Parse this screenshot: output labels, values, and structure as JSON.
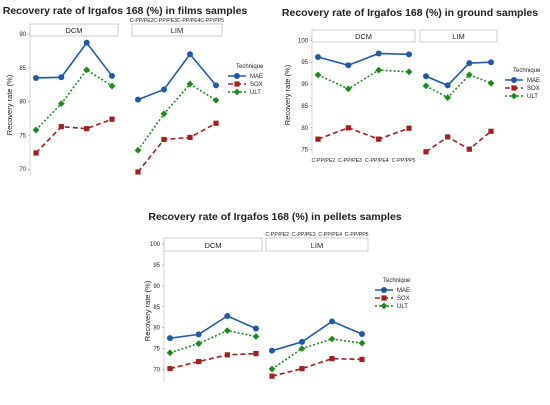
{
  "chart_data": [
    {
      "type": "line",
      "title": "Recovery rate of Irgafos 168 (%) in films samples",
      "ylabel": "Recovery rate (%)",
      "ylim": [
        69,
        90
      ],
      "yticks": [
        70,
        75,
        80,
        85,
        90
      ],
      "panels": [
        "DCM",
        "LIM"
      ],
      "categories": [
        "C-PP/PE2",
        "C-PP/PE3",
        "C-PP/PE4",
        "C-PP/PP5"
      ],
      "legend_title": "Technique",
      "legend_position": "right",
      "series": [
        {
          "name": "MAE",
          "color": "#1f5aa6",
          "marker": "circle",
          "dash": "solid",
          "values": {
            "DCM": [
              83.5,
              83.6,
              88.7,
              83.8
            ],
            "LIM": [
              80.3,
              81.8,
              87.0,
              82.4
            ]
          }
        },
        {
          "name": "SOX",
          "color": "#a11f1f",
          "marker": "square",
          "dash": "dashed",
          "values": {
            "DCM": [
              72.4,
              76.3,
              76.0,
              77.4
            ],
            "LIM": [
              69.6,
              74.4,
              74.7,
              76.8
            ]
          }
        },
        {
          "name": "ULT",
          "color": "#1e8a1e",
          "marker": "diamond",
          "dash": "dotted",
          "values": {
            "DCM": [
              75.8,
              79.7,
              84.7,
              82.3
            ],
            "LIM": [
              72.8,
              78.2,
              82.6,
              80.2
            ]
          }
        }
      ]
    },
    {
      "type": "line",
      "title": "Recovery rate of Irgafos 168 (%) in ground samples",
      "ylabel": "Recovery rate (%)",
      "ylim": [
        74,
        101
      ],
      "yticks": [
        75,
        80,
        85,
        90,
        95,
        100
      ],
      "panels": [
        "DCM",
        "LIM"
      ],
      "categories": [
        "C-PP/PE2",
        "C-PP/PE3",
        "C-PP/PE4",
        "C-PP/PP5"
      ],
      "legend_title": "Technique",
      "legend_position": "right",
      "series": [
        {
          "name": "MAE",
          "color": "#1f5aa6",
          "marker": "circle",
          "dash": "solid",
          "values": {
            "DCM": [
              96.2,
              94.3,
              97.0,
              96.8
            ],
            "LIM": [
              91.8,
              89.7,
              94.8,
              95.0
            ]
          }
        },
        {
          "name": "SOX",
          "color": "#a11f1f",
          "marker": "square",
          "dash": "dashed",
          "values": {
            "DCM": [
              77.4,
              80.0,
              77.4,
              79.9
            ],
            "LIM": [
              74.5,
              77.9,
              75.1,
              79.2
            ]
          }
        },
        {
          "name": "ULT",
          "color": "#1e8a1e",
          "marker": "diamond",
          "dash": "dotted",
          "values": {
            "DCM": [
              92.1,
              88.9,
              93.2,
              92.8
            ],
            "LIM": [
              89.6,
              86.9,
              92.1,
              90.2
            ]
          }
        }
      ]
    },
    {
      "type": "line",
      "title": "Recovery rate of Irgafos 168 (%) in pellets samples",
      "ylabel": "Recovery rate (%)",
      "ylim": [
        67,
        101
      ],
      "yticks": [
        70,
        75,
        80,
        85,
        90,
        95,
        100
      ],
      "panels": [
        "DCM",
        "LIM"
      ],
      "categories": [
        "C-PP/PE2",
        "C-PP/PE3",
        "C-PP/PE4",
        "C-PP/PP5"
      ],
      "legend_title": "Technique",
      "legend_position": "right",
      "series": [
        {
          "name": "MAE",
          "color": "#1f5aa6",
          "marker": "circle",
          "dash": "solid",
          "values": {
            "DCM": [
              77.5,
              78.4,
              82.8,
              79.8
            ],
            "LIM": [
              74.5,
              76.6,
              81.5,
              78.5
            ]
          }
        },
        {
          "name": "SOX",
          "color": "#a11f1f",
          "marker": "square",
          "dash": "dashed",
          "values": {
            "DCM": [
              70.2,
              71.9,
              73.5,
              73.8
            ],
            "LIM": [
              68.4,
              70.2,
              72.6,
              72.4
            ]
          }
        },
        {
          "name": "ULT",
          "color": "#1e8a1e",
          "marker": "diamond",
          "dash": "dotted",
          "values": {
            "DCM": [
              74.0,
              76.2,
              79.3,
              77.9
            ],
            "LIM": [
              70.1,
              75.0,
              77.3,
              76.3
            ]
          }
        }
      ]
    }
  ]
}
